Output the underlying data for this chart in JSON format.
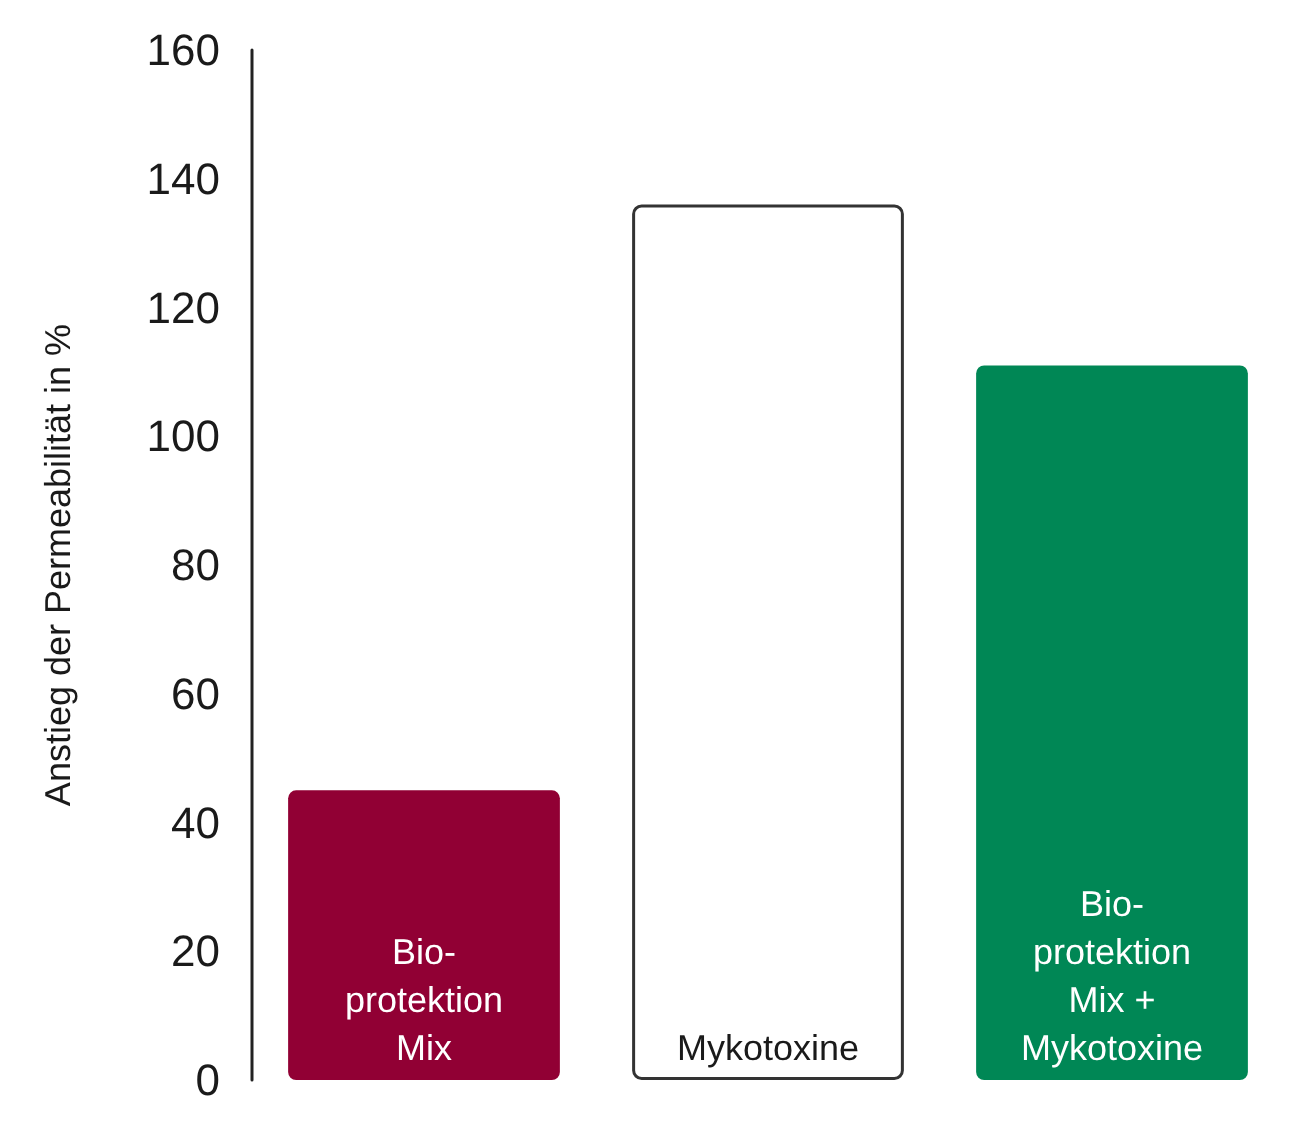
{
  "chart_data": {
    "type": "bar",
    "ylabel": "Anstieg der Permeabilität in %",
    "categories": [
      "Bio-protektion Mix",
      "Mykotoxine",
      "Bio-protektion Mix + Mykotoxine"
    ],
    "values": [
      45,
      136,
      111
    ],
    "colors": [
      "#910034",
      "#ffffff",
      "#008755"
    ],
    "ylim": [
      0,
      160
    ],
    "yticks": [
      0,
      20,
      40,
      60,
      80,
      100,
      120,
      140,
      160
    ],
    "tick_labels": "y"
  }
}
